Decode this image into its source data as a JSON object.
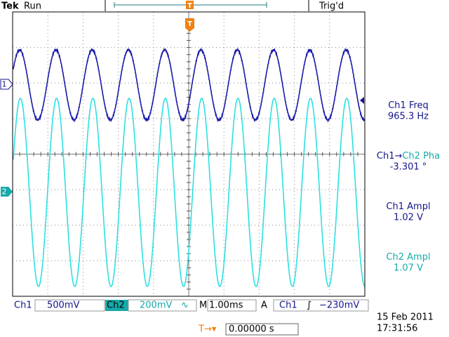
{
  "header": {
    "brand": "Tek",
    "status": "Run",
    "trigger_status": "Trig'd"
  },
  "markers": {
    "trigger_position": "T",
    "trigger_point": "T",
    "ch1": "1",
    "ch2": "2"
  },
  "measurements": [
    {
      "label_parts": [
        "Ch1 Freq"
      ],
      "value": "965.3 Hz"
    },
    {
      "label_parts": [
        "Ch1→",
        "Ch2 Pha"
      ],
      "value": "-3.301 °"
    },
    {
      "label_parts": [
        "Ch1 Ampl"
      ],
      "value": "1.02 V"
    },
    {
      "label_parts": [
        "Ch2 Ampl"
      ],
      "value": "1.07 V"
    }
  ],
  "footer": {
    "ch1": "Ch1",
    "ch1_scale": "500mV",
    "ch2": "Ch2",
    "ch2_scale": "200mV",
    "ch2_coupling": "∿",
    "time_mode": "M",
    "time_scale": "1.00ms",
    "trigger_mode": "A",
    "trigger_source": "Ch1",
    "trigger_slope": "∫",
    "trigger_level": "−230mV",
    "date": "15 Feb 2011",
    "time": "17:31:56",
    "offset_marker": "T→▾",
    "offset": "0.00000 s"
  }
}
